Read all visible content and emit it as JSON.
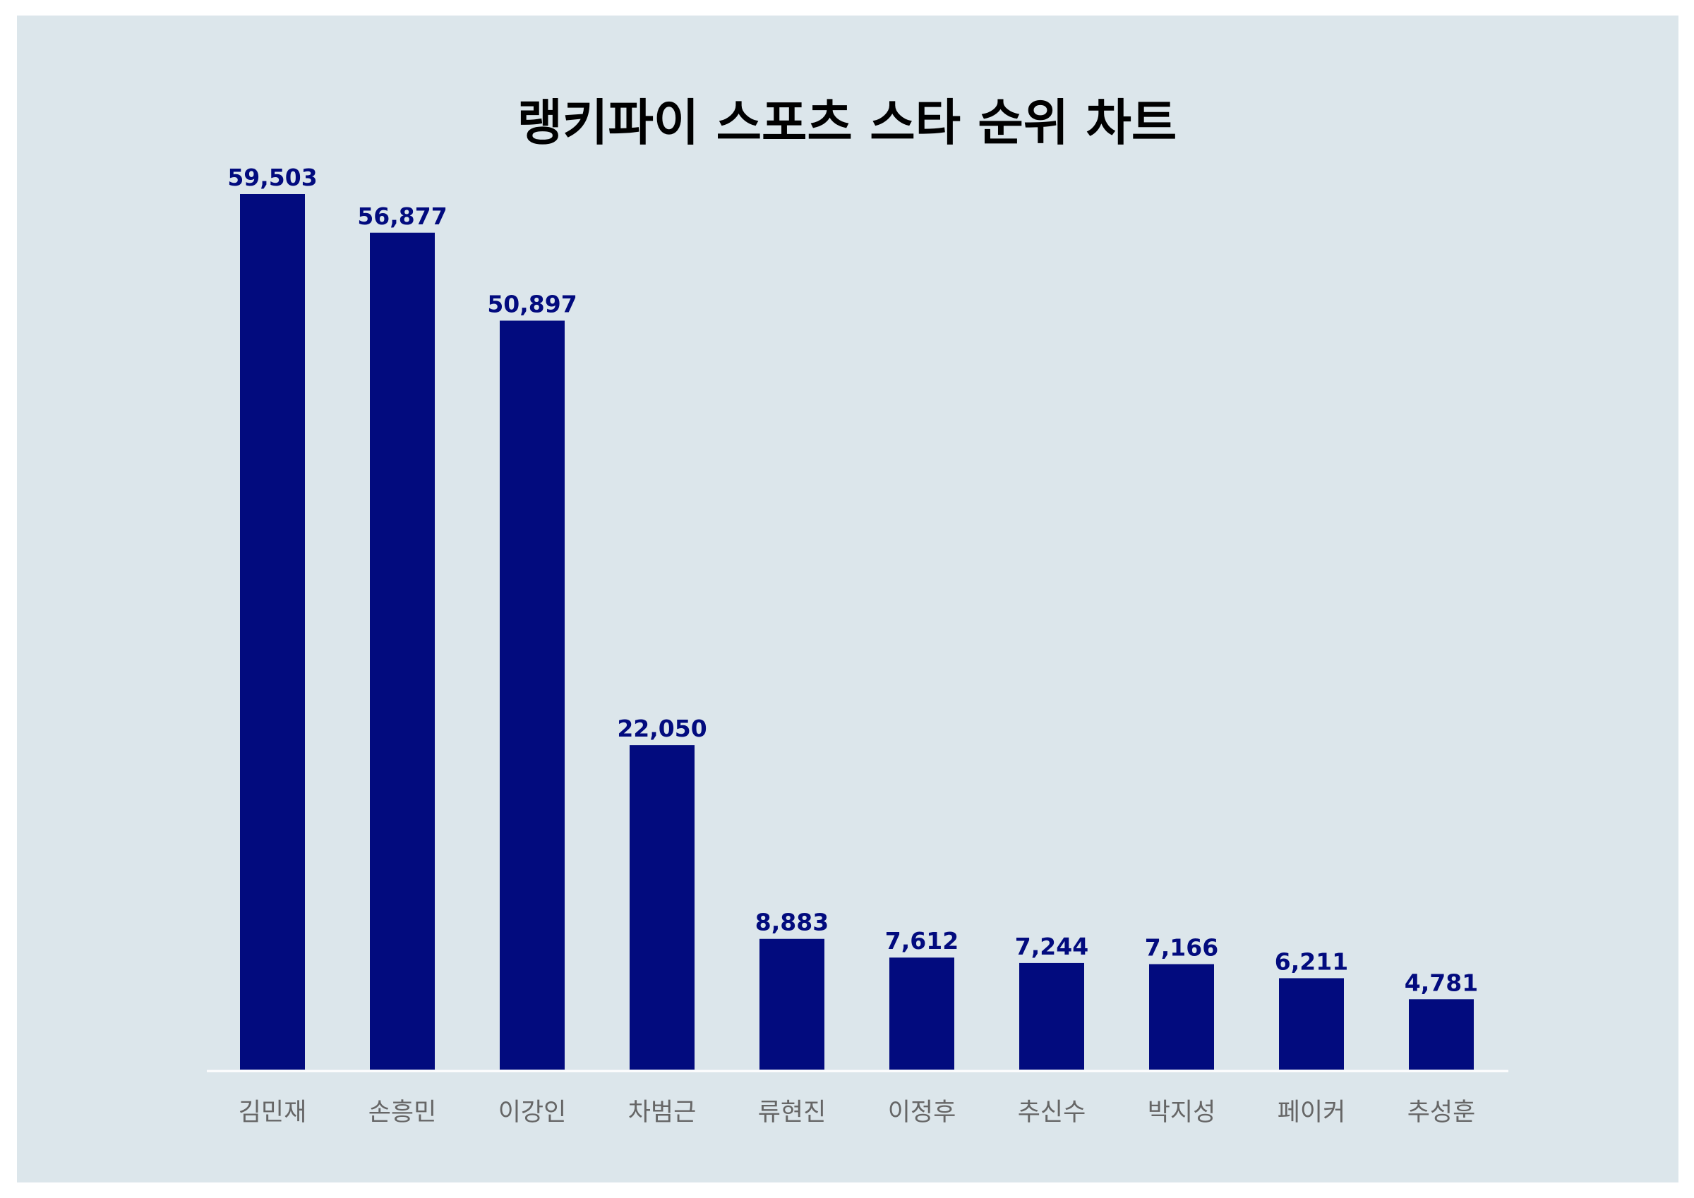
{
  "chart_data": {
    "type": "bar",
    "title": "랭키파이 스포츠 스타 순위 차트",
    "categories": [
      "김민재",
      "손흥민",
      "이강인",
      "차범근",
      "류현진",
      "이정후",
      "추신수",
      "박지성",
      "페이커",
      "추성훈"
    ],
    "values": [
      59503,
      56877,
      50897,
      22050,
      8883,
      7612,
      7244,
      7166,
      6211,
      4781
    ],
    "value_labels": [
      "59,503",
      "56,877",
      "50,897",
      "22,050",
      "8,883",
      "7,612",
      "7,244",
      "7,166",
      "6,211",
      "4,781"
    ],
    "xlabel": "",
    "ylabel": "",
    "ylim": [
      0,
      59503
    ],
    "grid": false,
    "legend": "none",
    "bar_color": "#020b7e",
    "label_color": "#020b7e",
    "background_color": "#dce6eb"
  }
}
